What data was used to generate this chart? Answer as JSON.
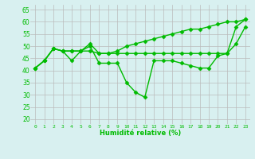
{
  "xlabel": "Humidité relative (%)",
  "background_color": "#d8f0f0",
  "grid_color": "#bbbbbb",
  "line_color": "#00bb00",
  "tick_color": "#00bb00",
  "xlim": [
    -0.5,
    23.5
  ],
  "ylim": [
    18,
    67
  ],
  "yticks": [
    20,
    25,
    30,
    35,
    40,
    45,
    50,
    55,
    60,
    65
  ],
  "xticks": [
    0,
    1,
    2,
    3,
    4,
    5,
    6,
    7,
    8,
    9,
    10,
    11,
    12,
    13,
    14,
    15,
    16,
    17,
    18,
    19,
    20,
    21,
    22,
    23
  ],
  "s_dip": [
    41,
    44,
    49,
    48,
    44,
    48,
    50,
    43,
    43,
    43,
    35,
    31,
    29,
    44,
    44,
    44,
    43,
    42,
    41,
    41,
    46,
    47,
    58,
    61
  ],
  "s_top": [
    41,
    44,
    49,
    48,
    48,
    48,
    51,
    47,
    47,
    48,
    50,
    51,
    52,
    53,
    54,
    55,
    56,
    57,
    57,
    58,
    59,
    60,
    60,
    61
  ],
  "s_mid": [
    41,
    44,
    49,
    48,
    48,
    48,
    48,
    47,
    47,
    47,
    47,
    47,
    47,
    47,
    47,
    47,
    47,
    47,
    47,
    47,
    47,
    47,
    51,
    58
  ],
  "markersize": 2.5,
  "linewidth": 1.0
}
